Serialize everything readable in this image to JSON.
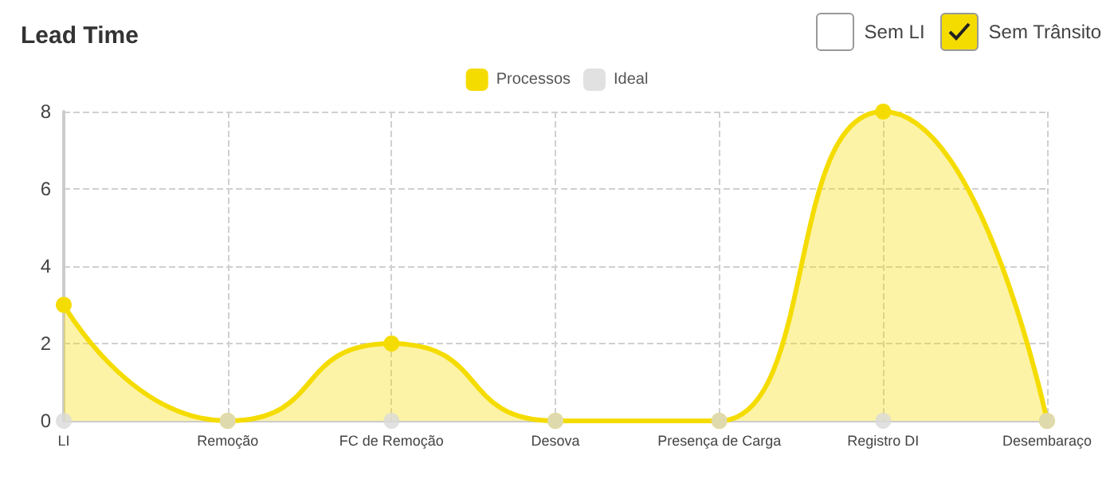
{
  "chart_data": {
    "type": "area",
    "title": "Lead Time",
    "categories": [
      "LI",
      "Remoção",
      "FC de Remoção",
      "Desova",
      "Presença de Carga",
      "Registro DI",
      "Desembaraço"
    ],
    "series": [
      {
        "name": "Processos",
        "color": "#f5dc00",
        "values": [
          3,
          0,
          2,
          0,
          0,
          8,
          0
        ]
      },
      {
        "name": "Ideal",
        "type": "scatter",
        "color": "#d9d9d9",
        "values": [
          0,
          0,
          0,
          0,
          0,
          0,
          0
        ]
      }
    ],
    "ylim": [
      0,
      8
    ],
    "yticks": [
      0,
      2,
      4,
      6,
      8
    ],
    "grid": true,
    "legend": "top",
    "marker": "circle",
    "annotations": [
      "Sem LI",
      "Sem Trânsito"
    ]
  }
}
